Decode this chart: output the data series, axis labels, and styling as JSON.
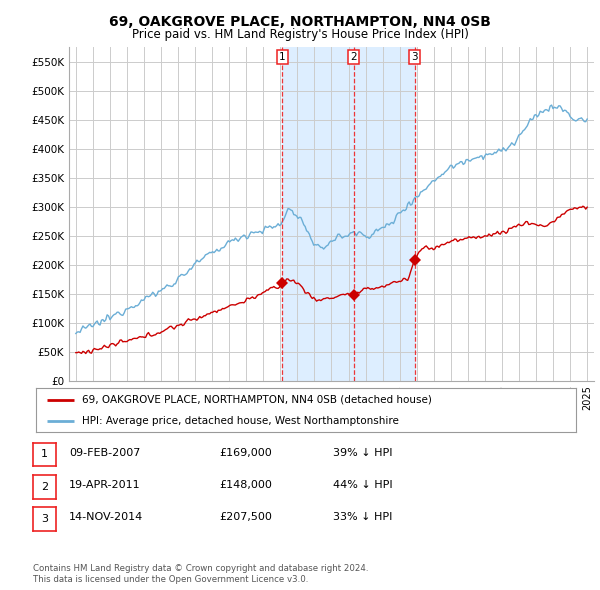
{
  "title": "69, OAKGROVE PLACE, NORTHAMPTON, NN4 0SB",
  "subtitle": "Price paid vs. HM Land Registry's House Price Index (HPI)",
  "background_color": "#ffffff",
  "plot_background": "#ffffff",
  "grid_color": "#cccccc",
  "ylim": [
    0,
    575000
  ],
  "yticks": [
    0,
    50000,
    100000,
    150000,
    200000,
    250000,
    300000,
    350000,
    400000,
    450000,
    500000,
    550000
  ],
  "ytick_labels": [
    "£0",
    "£50K",
    "£100K",
    "£150K",
    "£200K",
    "£250K",
    "£300K",
    "£350K",
    "£400K",
    "£450K",
    "£500K",
    "£550K"
  ],
  "sale_dates_year": [
    2007.11,
    2011.3,
    2014.87
  ],
  "sale_prices": [
    169000,
    148000,
    207500
  ],
  "sale_labels": [
    "1",
    "2",
    "3"
  ],
  "vline_color": "#ee2222",
  "shade_color": "#ddeeff",
  "hpi_color": "#6baed6",
  "price_color": "#cc0000",
  "legend_entries": [
    "69, OAKGROVE PLACE, NORTHAMPTON, NN4 0SB (detached house)",
    "HPI: Average price, detached house, West Northamptonshire"
  ],
  "table_rows": [
    [
      "1",
      "09-FEB-2007",
      "£169,000",
      "39% ↓ HPI"
    ],
    [
      "2",
      "19-APR-2011",
      "£148,000",
      "44% ↓ HPI"
    ],
    [
      "3",
      "14-NOV-2014",
      "£207,500",
      "33% ↓ HPI"
    ]
  ],
  "footnote1": "Contains HM Land Registry data © Crown copyright and database right 2024.",
  "footnote2": "This data is licensed under the Open Government Licence v3.0."
}
